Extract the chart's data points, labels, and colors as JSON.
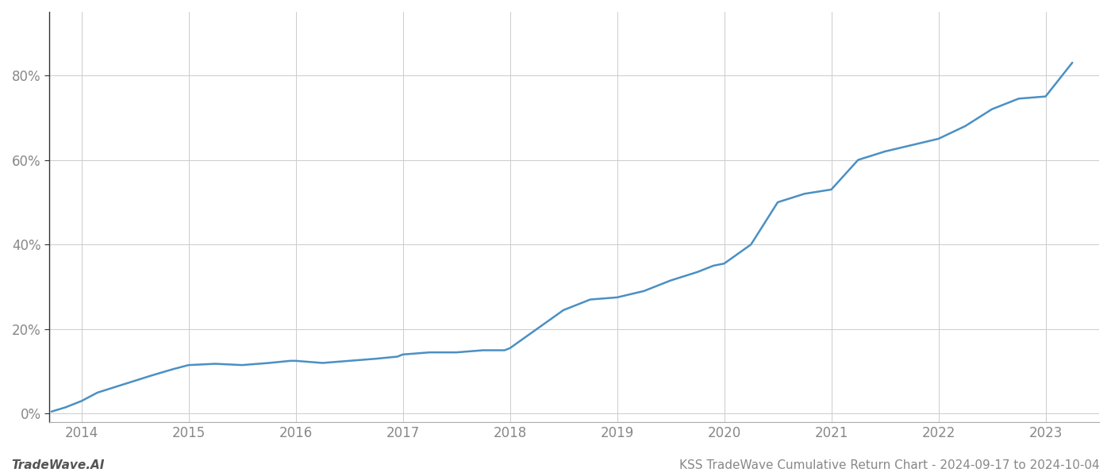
{
  "title": "KSS TradeWave Cumulative Return Chart - 2024-09-17 to 2024-10-04",
  "watermark": "TradeWave.AI",
  "line_color": "#4a90c4",
  "background_color": "#ffffff",
  "grid_color": "#cccccc",
  "x_years": [
    2014,
    2015,
    2016,
    2017,
    2018,
    2019,
    2020,
    2021,
    2022,
    2023
  ],
  "x_values": [
    2013.72,
    2013.85,
    2014.0,
    2014.15,
    2014.4,
    2014.65,
    2014.85,
    2015.0,
    2015.25,
    2015.5,
    2015.75,
    2015.95,
    2016.0,
    2016.25,
    2016.5,
    2016.75,
    2016.95,
    2017.0,
    2017.25,
    2017.5,
    2017.75,
    2017.95,
    2018.0,
    2018.25,
    2018.5,
    2018.75,
    2019.0,
    2019.25,
    2019.5,
    2019.75,
    2019.9,
    2020.0,
    2020.25,
    2020.5,
    2020.75,
    2021.0,
    2021.25,
    2021.5,
    2021.75,
    2022.0,
    2022.25,
    2022.5,
    2022.75,
    2023.0,
    2023.25
  ],
  "y_values": [
    0.5,
    1.5,
    3.0,
    5.0,
    7.0,
    9.0,
    10.5,
    11.5,
    11.8,
    11.5,
    12.0,
    12.5,
    12.5,
    12.0,
    12.5,
    13.0,
    13.5,
    14.0,
    14.5,
    14.5,
    15.0,
    15.0,
    15.5,
    20.0,
    24.5,
    27.0,
    27.5,
    29.0,
    31.5,
    33.5,
    35.0,
    35.5,
    40.0,
    50.0,
    52.0,
    53.0,
    60.0,
    62.0,
    63.5,
    65.0,
    68.0,
    72.0,
    74.5,
    75.0,
    83.0
  ],
  "ylim": [
    -2,
    95
  ],
  "xlim": [
    2013.7,
    2023.5
  ],
  "yticks": [
    0,
    20,
    40,
    60,
    80
  ],
  "ytick_labels": [
    "0%",
    "20%",
    "40%",
    "60%",
    "80%"
  ],
  "title_fontsize": 11,
  "tick_fontsize": 12,
  "watermark_fontsize": 11,
  "line_width": 1.8
}
